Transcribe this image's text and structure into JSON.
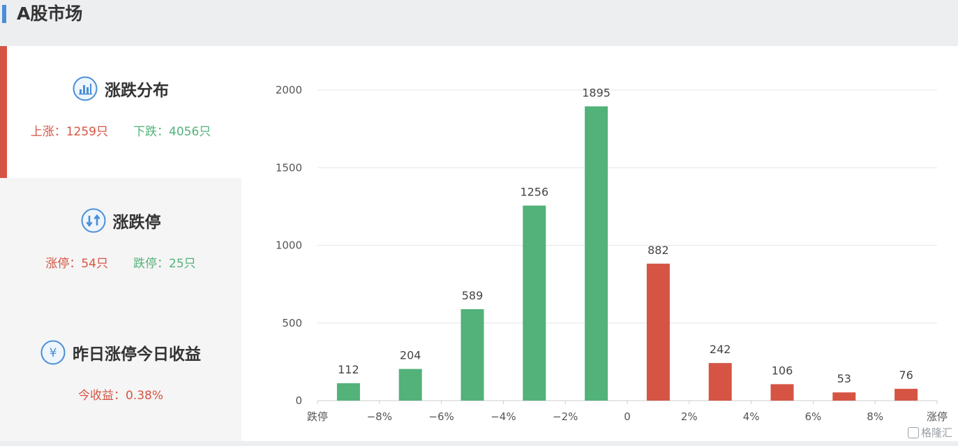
{
  "header": {
    "title": "A股市场"
  },
  "panels": [
    {
      "title": "涨跌分布",
      "icon": "bar-chart-icon",
      "stats": [
        {
          "text": "上涨：1259只",
          "color": "red"
        },
        {
          "text": "下跌：4056只",
          "color": "green"
        }
      ]
    },
    {
      "title": "涨跌停",
      "icon": "up-down-arrows-icon",
      "stats": [
        {
          "text": "涨停：54只",
          "color": "red"
        },
        {
          "text": "跌停：25只",
          "color": "green"
        }
      ]
    },
    {
      "title": "昨日涨停今日收益",
      "icon": "yen-icon",
      "icon_glyph": "¥",
      "stats": [
        {
          "text": "今收益：0.38%",
          "color": "red"
        }
      ]
    }
  ],
  "colors": {
    "up": "#d65443",
    "down": "#52b27a",
    "accent_blue": "#4a8fd6"
  },
  "watermark": "格隆汇",
  "chart_data": {
    "type": "bar",
    "x_ticks": [
      "跌停",
      "−8%",
      "−6%",
      "−4%",
      "−2%",
      "0",
      "2%",
      "4%",
      "6%",
      "8%",
      "涨停"
    ],
    "bars": [
      {
        "value": 112,
        "color": "green"
      },
      {
        "value": 204,
        "color": "green"
      },
      {
        "value": 589,
        "color": "green"
      },
      {
        "value": 1256,
        "color": "green"
      },
      {
        "value": 1895,
        "color": "green"
      },
      {
        "value": 882,
        "color": "red"
      },
      {
        "value": 242,
        "color": "red"
      },
      {
        "value": 106,
        "color": "red"
      },
      {
        "value": 53,
        "color": "red"
      },
      {
        "value": 76,
        "color": "red"
      }
    ],
    "y_ticks": [
      0,
      500,
      1000,
      1500,
      2000
    ],
    "ylim": [
      0,
      2000
    ],
    "grid": true,
    "title": "",
    "xlabel": "",
    "ylabel": ""
  }
}
